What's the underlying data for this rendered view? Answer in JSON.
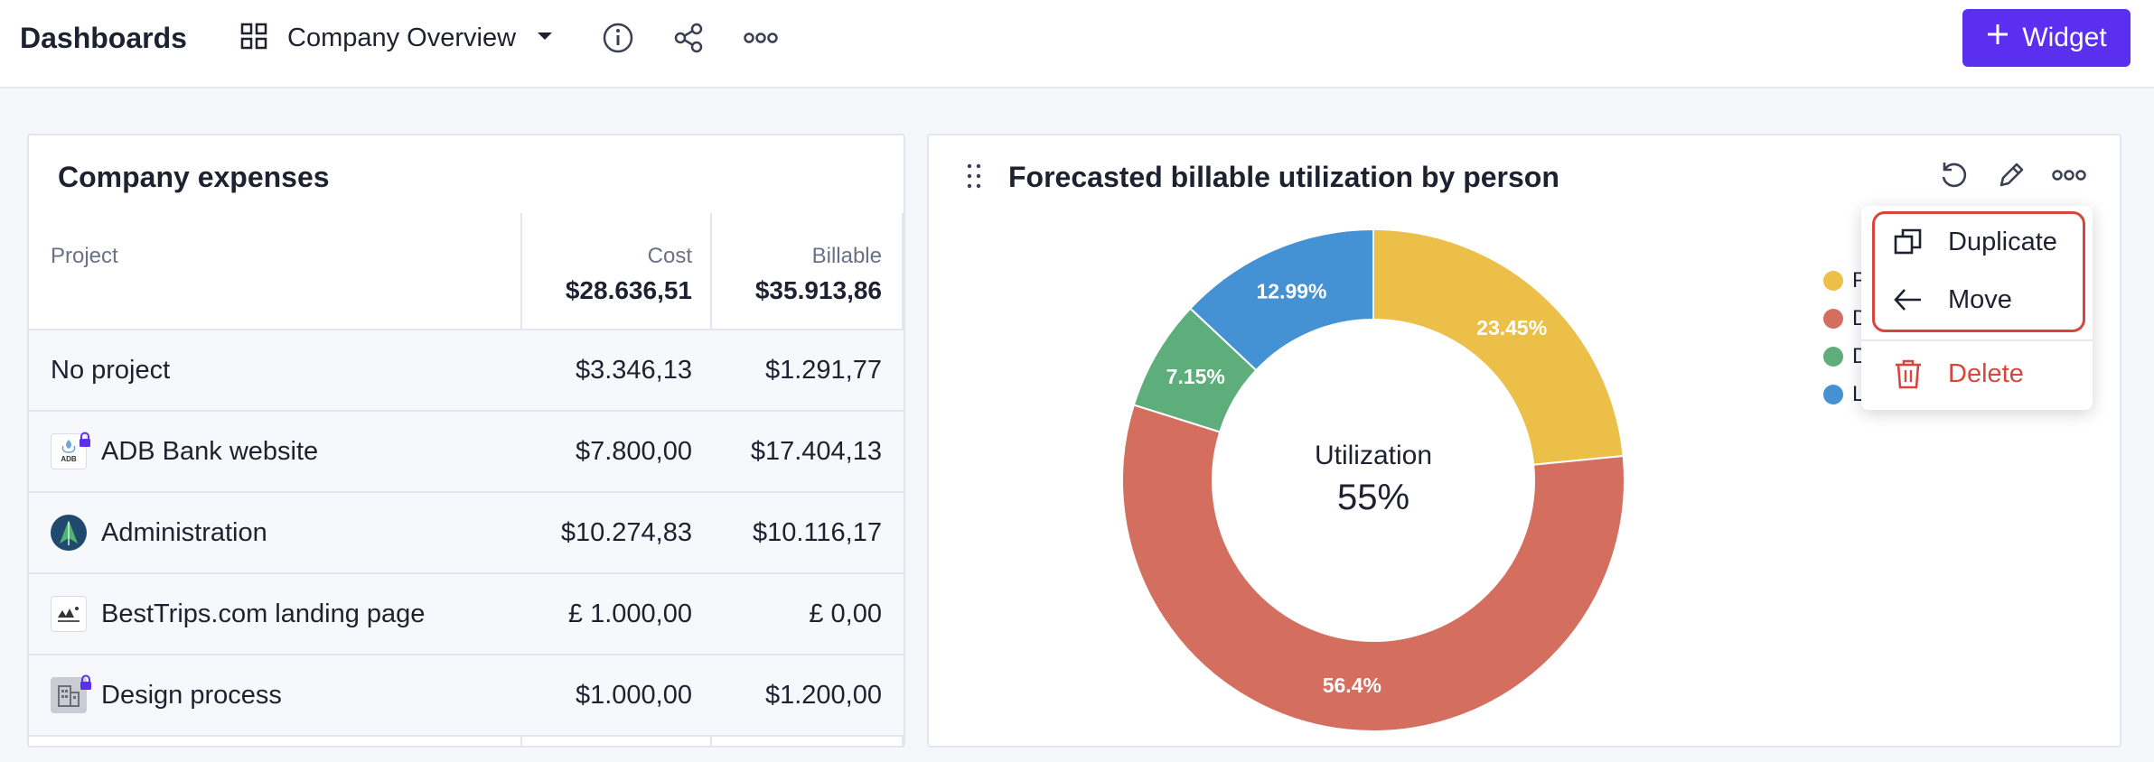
{
  "header": {
    "title": "Dashboards",
    "dashboard_name": "Company Overview",
    "widget_button": "Widget"
  },
  "icons": {
    "grid": "grid-icon",
    "caret": "caret-down-icon",
    "info": "info-icon",
    "share": "share-icon",
    "more": "more-horizontal-icon",
    "plus": "plus-icon",
    "drag": "drag-handle-icon",
    "undo": "undo-icon",
    "edit": "pencil-icon",
    "duplicate": "duplicate-icon",
    "move": "arrow-left-icon",
    "delete": "trash-icon",
    "lock": "lock-icon"
  },
  "colors": {
    "accent": "#5a2ff0",
    "danger": "#d8453d"
  },
  "expenses": {
    "title": "Company expenses",
    "columns": {
      "project": "Project",
      "cost": "Cost",
      "billable": "Billable"
    },
    "totals": {
      "cost": "$28.636,51",
      "billable": "$35.913,86"
    },
    "rows": [
      {
        "name": "No project",
        "cost": "$3.346,13",
        "billable": "$1.291,77",
        "logo": "none",
        "locked": false
      },
      {
        "name": "ADB Bank website",
        "cost": "$7.800,00",
        "billable": "$17.404,13",
        "logo": "adb-logo",
        "logo_text": "ADB",
        "locked": true
      },
      {
        "name": "Administration",
        "cost": "$10.274,83",
        "billable": "$10.116,17",
        "logo": "tree-logo",
        "locked": false
      },
      {
        "name": "BestTrips.com landing page",
        "cost": "£ 1.000,00",
        "billable": "£ 0,00",
        "logo": "besttrips-logo",
        "locked": false
      },
      {
        "name": "Design process",
        "cost": "$1.000,00",
        "billable": "$1.200,00",
        "logo": "building-logo",
        "locked": true
      }
    ]
  },
  "utilization": {
    "title": "Forecasted billable utilization by person",
    "center_label": "Utilization",
    "center_value": "55%",
    "legend_visible": [
      "P",
      "D",
      "D",
      "L"
    ]
  },
  "chart_data": {
    "type": "pie",
    "title": "Forecasted billable utilization by person",
    "values": [
      23.45,
      56.4,
      7.15,
      12.99
    ],
    "labels": [
      "23.45%",
      "56.4%",
      "7.15%",
      "12.99%"
    ],
    "colors": [
      "#ecc048",
      "#d46e5f",
      "#5dae7b",
      "#4492d4"
    ],
    "donut": true,
    "legend_placement": "right"
  },
  "menu": {
    "duplicate": "Duplicate",
    "move": "Move",
    "delete": "Delete"
  }
}
